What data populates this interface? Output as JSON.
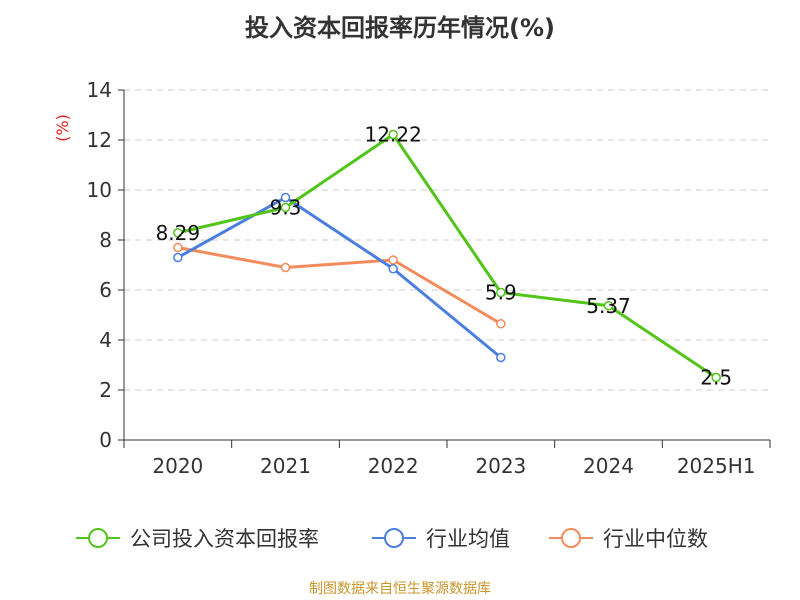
{
  "chart_data": {
    "type": "line",
    "title": "投入资本回报率历年情况(%)",
    "ylabel": "(%)",
    "xlabel": "",
    "categories": [
      "2020",
      "2021",
      "2022",
      "2023",
      "2024",
      "2025H1"
    ],
    "ylim": [
      0,
      14
    ],
    "yticks": [
      0,
      2,
      4,
      6,
      8,
      10,
      12,
      14
    ],
    "grid": true,
    "legend_position": "bottom",
    "series": [
      {
        "name": "公司投入资本回报率",
        "color": "#52c41a",
        "values": [
          8.29,
          9.3,
          12.22,
          5.9,
          5.37,
          2.5
        ],
        "labels": [
          "8.29",
          "9.3",
          "12.22",
          "5.9",
          "5.37",
          "2.5"
        ]
      },
      {
        "name": "行业均值",
        "color": "#4a7fe0",
        "values": [
          7.3,
          9.7,
          6.85,
          3.3,
          null,
          null
        ],
        "labels": []
      },
      {
        "name": "行业中位数",
        "color": "#f28c5a",
        "values": [
          7.7,
          6.9,
          7.2,
          4.65,
          null,
          null
        ],
        "labels": []
      }
    ]
  },
  "source_note": "制图数据来自恒生聚源数据库"
}
